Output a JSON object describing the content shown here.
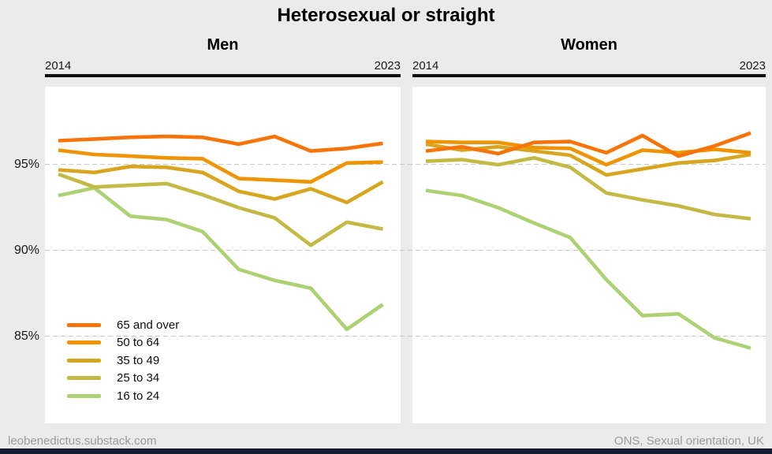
{
  "title": "Heterosexual or straight",
  "panels": {
    "left_title": "Men",
    "right_title": "Women"
  },
  "x_axis": {
    "start_label": "2014",
    "end_label": "2023"
  },
  "y_axis": {
    "tick_labels": [
      "95%",
      "90%",
      "85%"
    ],
    "tick_values": [
      95,
      90,
      85
    ]
  },
  "legend": [
    {
      "label": "65 and over",
      "color": "#f87408"
    },
    {
      "label": "50 to 64",
      "color": "#ef9400"
    },
    {
      "label": "35 to 49",
      "color": "#d7a51f"
    },
    {
      "label": "25 to 34",
      "color": "#c3ba45"
    },
    {
      "label": "16 to 24",
      "color": "#add173"
    }
  ],
  "footer": {
    "left": "leobenedictus.substack.com",
    "right": "ONS, Sexual orientation, UK"
  },
  "chart_data": [
    {
      "type": "line",
      "panel": "Men",
      "x": [
        2014,
        2015,
        2016,
        2017,
        2018,
        2019,
        2020,
        2021,
        2022,
        2023
      ],
      "ylim": [
        80,
        99.5
      ],
      "gridlines": [
        95,
        90,
        85
      ],
      "legend_position": "bottom-left of left panel",
      "series": [
        {
          "name": "65 and over",
          "color": "#f87408",
          "values": [
            96.4,
            96.5,
            96.6,
            96.65,
            96.6,
            96.2,
            96.65,
            95.8,
            95.95,
            96.25
          ]
        },
        {
          "name": "50 to 64",
          "color": "#ef9400",
          "values": [
            95.85,
            95.6,
            95.5,
            95.4,
            95.35,
            94.2,
            94.1,
            94.0,
            95.1,
            95.15
          ]
        },
        {
          "name": "35 to 49",
          "color": "#d7a51f",
          "values": [
            94.7,
            94.55,
            94.9,
            94.85,
            94.55,
            93.45,
            93.0,
            93.6,
            92.8,
            94.0
          ]
        },
        {
          "name": "25 to 34",
          "color": "#c3ba45",
          "values": [
            94.45,
            93.7,
            93.8,
            93.9,
            93.25,
            92.5,
            91.9,
            90.3,
            91.65,
            91.25
          ]
        },
        {
          "name": "16 to 24",
          "color": "#add173",
          "values": [
            93.2,
            93.65,
            92.0,
            91.8,
            91.1,
            88.9,
            88.25,
            87.8,
            85.4,
            86.85
          ]
        }
      ]
    },
    {
      "type": "line",
      "panel": "Women",
      "x": [
        2014,
        2015,
        2016,
        2017,
        2018,
        2019,
        2020,
        2021,
        2022,
        2023
      ],
      "ylim": [
        80,
        99.5
      ],
      "gridlines": [
        95,
        90,
        85
      ],
      "series": [
        {
          "name": "65 and over",
          "color": "#f87408",
          "values": [
            95.8,
            96.05,
            95.65,
            96.3,
            96.35,
            95.7,
            96.7,
            95.5,
            96.1,
            96.85
          ]
        },
        {
          "name": "50 to 64",
          "color": "#ef9400",
          "values": [
            96.35,
            96.3,
            96.3,
            96.0,
            95.95,
            95.0,
            95.85,
            95.7,
            95.9,
            95.7
          ]
        },
        {
          "name": "35 to 49",
          "color": "#d7a51f",
          "values": [
            96.2,
            95.85,
            96.05,
            95.8,
            95.55,
            94.4,
            94.75,
            95.1,
            95.25,
            95.6
          ]
        },
        {
          "name": "25 to 34",
          "color": "#c3ba45",
          "values": [
            95.2,
            95.3,
            95.0,
            95.4,
            94.85,
            93.35,
            92.95,
            92.6,
            92.1,
            91.85
          ]
        },
        {
          "name": "16 to 24",
          "color": "#add173",
          "values": [
            93.5,
            93.2,
            92.5,
            91.6,
            90.75,
            88.3,
            86.2,
            86.3,
            84.9,
            84.3
          ]
        }
      ]
    }
  ]
}
